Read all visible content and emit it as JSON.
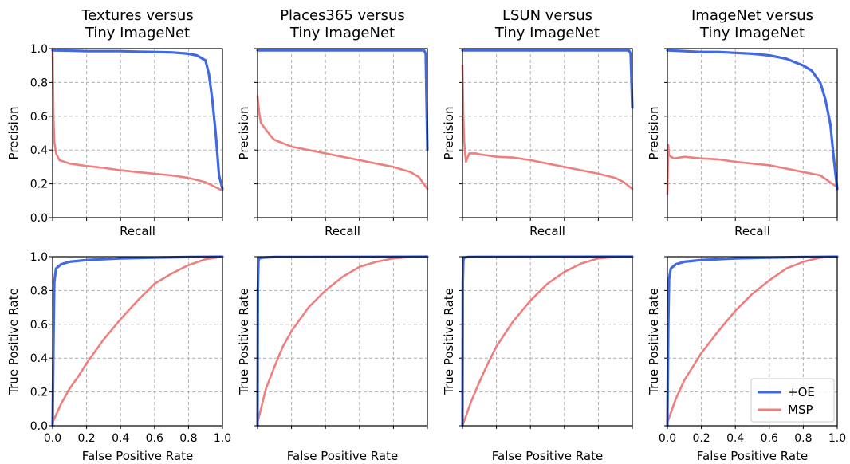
{
  "colors": {
    "oe": "#4169e1",
    "msp": "#ee7f7f",
    "grid": "#b0b0b0",
    "axis": "#000000"
  },
  "legend": {
    "placement": "lower-right",
    "items": [
      {
        "name": "+OE",
        "color": "#4169e1"
      },
      {
        "name": "MSP",
        "color": "#ee7f7f"
      }
    ]
  },
  "chart_data": [
    {
      "type": "line",
      "title": [
        "Textures versus",
        "Tiny ImageNet"
      ],
      "xlabel": "Recall",
      "ylabel": "Precision",
      "xlim": [
        0,
        1
      ],
      "ylim": [
        0,
        1
      ],
      "grid": true,
      "show_ytick_labels": true,
      "show_xtick_labels": false,
      "yticks": [
        "0.0",
        "0.2",
        "0.4",
        "0.6",
        "0.8",
        "1.0"
      ],
      "series": [
        {
          "name": "+OE",
          "x": [
            0,
            0.1,
            0.2,
            0.3,
            0.4,
            0.5,
            0.6,
            0.7,
            0.8,
            0.85,
            0.9,
            0.92,
            0.94,
            0.96,
            0.98,
            1.0
          ],
          "y": [
            0.99,
            0.988,
            0.985,
            0.985,
            0.985,
            0.982,
            0.98,
            0.978,
            0.97,
            0.96,
            0.93,
            0.85,
            0.7,
            0.5,
            0.25,
            0.17
          ]
        },
        {
          "name": "MSP",
          "x": [
            0,
            0.005,
            0.01,
            0.02,
            0.04,
            0.1,
            0.2,
            0.3,
            0.4,
            0.5,
            0.6,
            0.7,
            0.8,
            0.9,
            1.0
          ],
          "y": [
            1.0,
            0.6,
            0.45,
            0.38,
            0.34,
            0.32,
            0.305,
            0.295,
            0.28,
            0.27,
            0.26,
            0.25,
            0.235,
            0.21,
            0.16
          ]
        }
      ]
    },
    {
      "type": "line",
      "title": [
        "Places365 versus",
        "Tiny ImageNet"
      ],
      "xlabel": "Recall",
      "ylabel": "Precision",
      "xlim": [
        0,
        1
      ],
      "ylim": [
        0,
        1
      ],
      "grid": true,
      "show_ytick_labels": false,
      "show_xtick_labels": false,
      "series": [
        {
          "name": "+OE",
          "x": [
            0,
            0.5,
            0.9,
            0.98,
            0.99,
            1.0
          ],
          "y": [
            0.99,
            0.99,
            0.99,
            0.99,
            0.97,
            0.4
          ]
        },
        {
          "name": "MSP",
          "x": [
            0,
            0.01,
            0.02,
            0.05,
            0.08,
            0.1,
            0.15,
            0.2,
            0.3,
            0.4,
            0.5,
            0.6,
            0.7,
            0.8,
            0.9,
            0.95,
            1.0
          ],
          "y": [
            0.72,
            0.62,
            0.56,
            0.52,
            0.48,
            0.46,
            0.44,
            0.42,
            0.4,
            0.38,
            0.36,
            0.34,
            0.32,
            0.3,
            0.27,
            0.24,
            0.17
          ]
        }
      ]
    },
    {
      "type": "line",
      "title": [
        "LSUN versus",
        "Tiny ImageNet"
      ],
      "xlabel": "Recall",
      "ylabel": "Precision",
      "xlim": [
        0,
        1
      ],
      "ylim": [
        0,
        1
      ],
      "grid": true,
      "show_ytick_labels": false,
      "show_xtick_labels": false,
      "series": [
        {
          "name": "+OE",
          "x": [
            0,
            0.5,
            0.9,
            0.98,
            0.99,
            1.0
          ],
          "y": [
            0.99,
            0.99,
            0.99,
            0.99,
            0.97,
            0.65
          ]
        },
        {
          "name": "MSP",
          "x": [
            0,
            0.005,
            0.01,
            0.02,
            0.04,
            0.08,
            0.1,
            0.2,
            0.3,
            0.4,
            0.5,
            0.6,
            0.7,
            0.8,
            0.9,
            0.95,
            1.0
          ],
          "y": [
            0.9,
            0.6,
            0.45,
            0.33,
            0.38,
            0.38,
            0.375,
            0.36,
            0.355,
            0.34,
            0.32,
            0.3,
            0.28,
            0.26,
            0.235,
            0.21,
            0.17
          ]
        }
      ]
    },
    {
      "type": "line",
      "title": [
        "ImageNet versus",
        "Tiny ImageNet"
      ],
      "xlabel": "Recall",
      "ylabel": "Precision",
      "xlim": [
        0,
        1
      ],
      "ylim": [
        0,
        1
      ],
      "grid": true,
      "show_ytick_labels": false,
      "show_xtick_labels": false,
      "series": [
        {
          "name": "+OE",
          "x": [
            0,
            0.1,
            0.2,
            0.3,
            0.4,
            0.5,
            0.6,
            0.7,
            0.75,
            0.8,
            0.85,
            0.9,
            0.93,
            0.96,
            0.98,
            1.0
          ],
          "y": [
            0.99,
            0.985,
            0.98,
            0.98,
            0.975,
            0.97,
            0.96,
            0.94,
            0.92,
            0.9,
            0.87,
            0.8,
            0.7,
            0.55,
            0.35,
            0.17
          ]
        },
        {
          "name": "MSP",
          "x": [
            0,
            0.005,
            0.01,
            0.02,
            0.04,
            0.1,
            0.2,
            0.3,
            0.4,
            0.5,
            0.6,
            0.7,
            0.8,
            0.9,
            1.0
          ],
          "y": [
            0.14,
            0.43,
            0.37,
            0.36,
            0.35,
            0.36,
            0.35,
            0.345,
            0.33,
            0.32,
            0.31,
            0.29,
            0.27,
            0.25,
            0.18
          ]
        }
      ]
    },
    {
      "type": "line",
      "xlabel": "False Positive Rate",
      "ylabel": "True Positive Rate",
      "xlim": [
        0,
        1
      ],
      "ylim": [
        0,
        1
      ],
      "grid": true,
      "show_ytick_labels": true,
      "show_xtick_labels": true,
      "xticks": [
        "0.0",
        "0.2",
        "0.4",
        "0.6",
        "0.8",
        "1.0"
      ],
      "yticks": [
        "0.0",
        "0.2",
        "0.4",
        "0.6",
        "0.8",
        "1.0"
      ],
      "series": [
        {
          "name": "+OE",
          "x": [
            0,
            0.005,
            0.01,
            0.02,
            0.05,
            0.1,
            0.2,
            0.4,
            0.6,
            0.8,
            1.0
          ],
          "y": [
            0,
            0.5,
            0.85,
            0.93,
            0.955,
            0.97,
            0.98,
            0.99,
            0.995,
            0.998,
            1.0
          ]
        },
        {
          "name": "MSP",
          "x": [
            0,
            0.05,
            0.1,
            0.15,
            0.2,
            0.3,
            0.4,
            0.5,
            0.6,
            0.7,
            0.8,
            0.9,
            1.0
          ],
          "y": [
            0.02,
            0.13,
            0.22,
            0.29,
            0.37,
            0.51,
            0.63,
            0.74,
            0.84,
            0.9,
            0.95,
            0.985,
            1.0
          ]
        }
      ]
    },
    {
      "type": "line",
      "xlabel": "False Positive Rate",
      "ylabel": "True Positive Rate",
      "xlim": [
        0,
        1
      ],
      "ylim": [
        0,
        1
      ],
      "grid": true,
      "show_ytick_labels": false,
      "show_xtick_labels": false,
      "series": [
        {
          "name": "+OE",
          "x": [
            0,
            0.002,
            0.005,
            0.01,
            0.03,
            0.1,
            1.0
          ],
          "y": [
            0,
            0.8,
            0.97,
            0.99,
            0.995,
            0.998,
            1.0
          ]
        },
        {
          "name": "MSP",
          "x": [
            0,
            0.05,
            0.1,
            0.15,
            0.2,
            0.3,
            0.4,
            0.5,
            0.6,
            0.7,
            0.8,
            0.9,
            1.0
          ],
          "y": [
            0.02,
            0.22,
            0.35,
            0.47,
            0.56,
            0.7,
            0.8,
            0.88,
            0.94,
            0.97,
            0.99,
            0.998,
            1.0
          ]
        }
      ]
    },
    {
      "type": "line",
      "xlabel": "False Positive Rate",
      "ylabel": "True Positive Rate",
      "xlim": [
        0,
        1
      ],
      "ylim": [
        0,
        1
      ],
      "grid": true,
      "show_ytick_labels": false,
      "show_xtick_labels": false,
      "series": [
        {
          "name": "+OE",
          "x": [
            0,
            0.002,
            0.005,
            0.01,
            0.03,
            0.1,
            1.0
          ],
          "y": [
            0,
            0.85,
            0.98,
            0.995,
            0.998,
            0.999,
            1.0
          ]
        },
        {
          "name": "MSP",
          "x": [
            0,
            0.05,
            0.1,
            0.15,
            0.2,
            0.3,
            0.4,
            0.5,
            0.6,
            0.7,
            0.8,
            0.9,
            1.0
          ],
          "y": [
            0,
            0.14,
            0.26,
            0.37,
            0.47,
            0.62,
            0.74,
            0.84,
            0.91,
            0.96,
            0.99,
            0.998,
            1.0
          ]
        }
      ]
    },
    {
      "type": "line",
      "xlabel": "False Positive Rate",
      "ylabel": "True Positive Rate",
      "xlim": [
        0,
        1
      ],
      "ylim": [
        0,
        1
      ],
      "grid": true,
      "show_ytick_labels": false,
      "show_xtick_labels": true,
      "xticks": [
        "0.0",
        "0.2",
        "0.4",
        "0.6",
        "0.8",
        "1.0"
      ],
      "series": [
        {
          "name": "+OE",
          "x": [
            0,
            0.005,
            0.01,
            0.02,
            0.05,
            0.1,
            0.2,
            0.4,
            0.6,
            0.8,
            1.0
          ],
          "y": [
            0,
            0.6,
            0.87,
            0.93,
            0.955,
            0.97,
            0.98,
            0.99,
            0.995,
            0.998,
            1.0
          ]
        },
        {
          "name": "MSP",
          "x": [
            0,
            0.05,
            0.1,
            0.15,
            0.2,
            0.3,
            0.4,
            0.5,
            0.6,
            0.7,
            0.8,
            0.9,
            1.0
          ],
          "y": [
            0.02,
            0.16,
            0.27,
            0.35,
            0.43,
            0.56,
            0.68,
            0.78,
            0.86,
            0.93,
            0.97,
            0.995,
            1.0
          ]
        }
      ]
    }
  ]
}
